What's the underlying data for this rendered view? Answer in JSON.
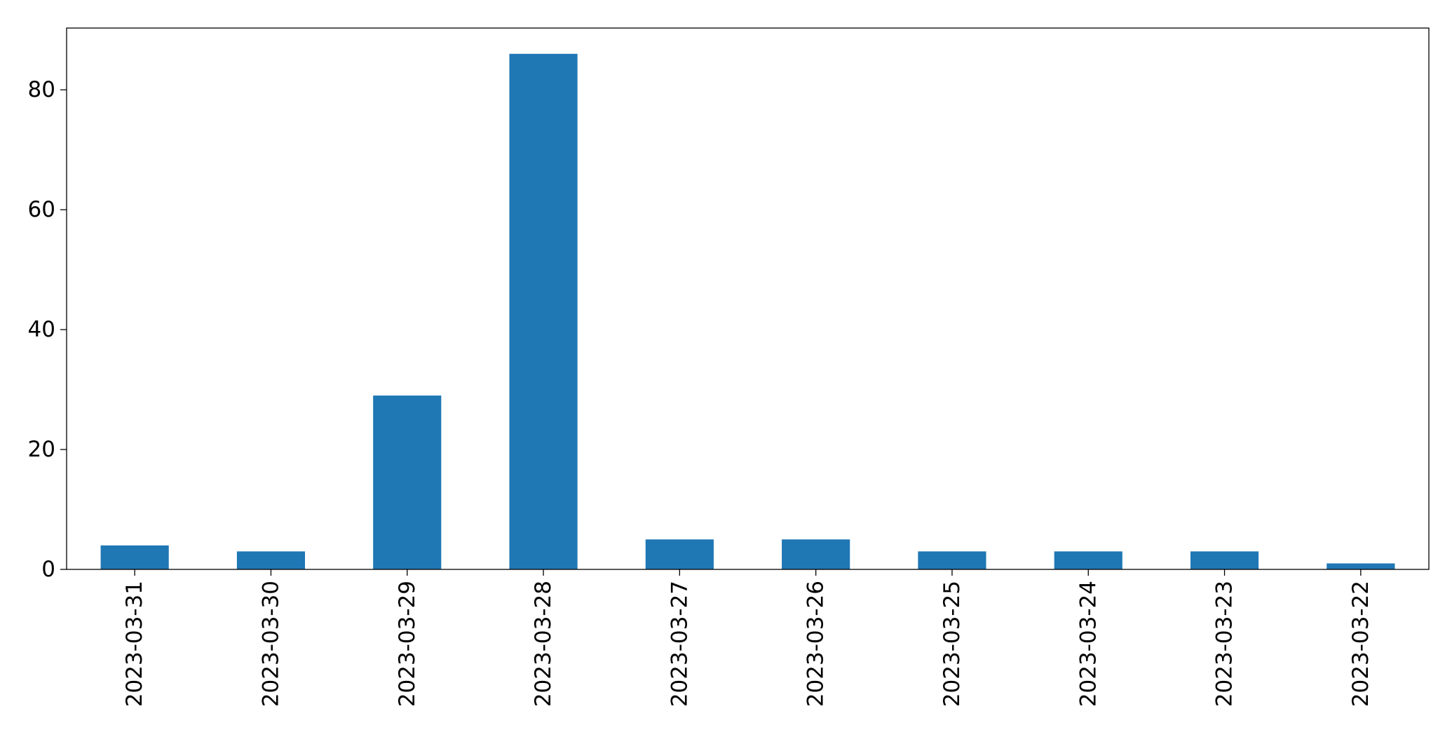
{
  "chart_data": {
    "type": "bar",
    "title": "",
    "xlabel": "",
    "ylabel": "",
    "categories": [
      "2023-03-31",
      "2023-03-30",
      "2023-03-29",
      "2023-03-28",
      "2023-03-27",
      "2023-03-26",
      "2023-03-25",
      "2023-03-24",
      "2023-03-23",
      "2023-03-22"
    ],
    "values": [
      4,
      3,
      29,
      86,
      5,
      5,
      3,
      3,
      3,
      1
    ],
    "ylim": [
      0,
      90.3
    ],
    "yticks": [
      0,
      20,
      40,
      60,
      80
    ],
    "grid": false,
    "legend": "none",
    "bar_color": "#1f77b4"
  }
}
